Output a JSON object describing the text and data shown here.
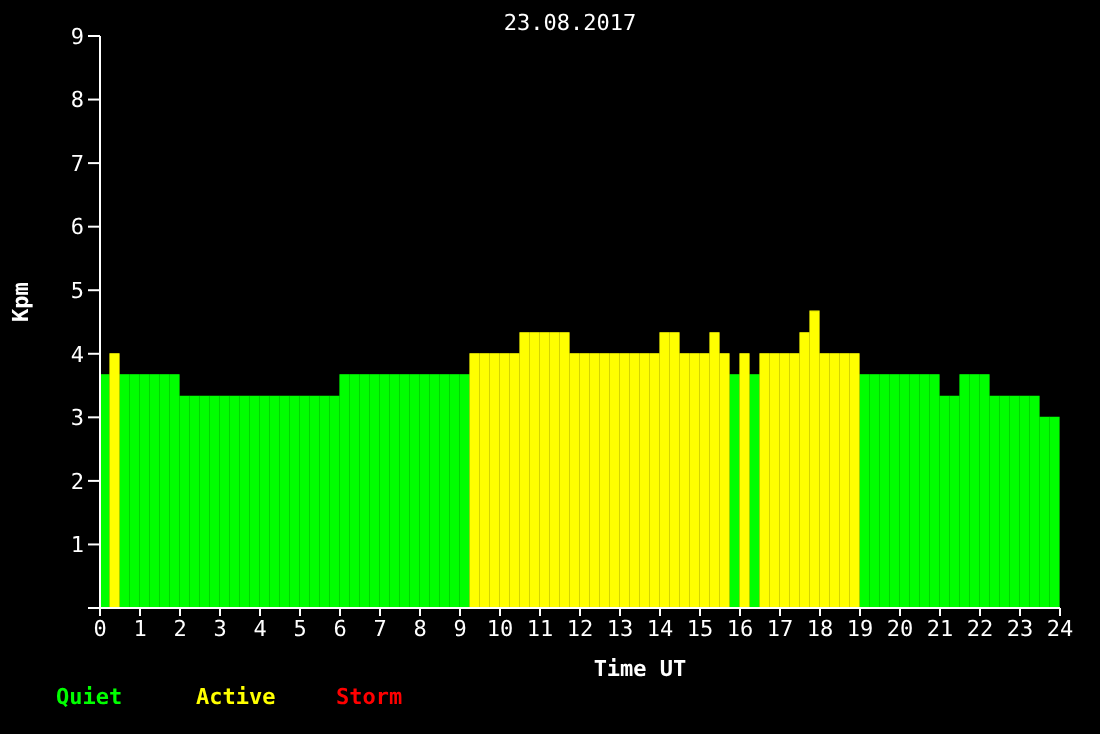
{
  "chart_data": {
    "type": "bar",
    "title": "23.08.2017",
    "xlabel": "Time UT",
    "ylabel": "Kpm",
    "x": [
      0.125,
      0.375,
      0.625,
      0.875,
      1.125,
      1.375,
      1.625,
      1.875,
      2.125,
      2.375,
      2.625,
      2.875,
      3.125,
      3.375,
      3.625,
      3.875,
      4.125,
      4.375,
      4.625,
      4.875,
      5.125,
      5.375,
      5.625,
      5.875,
      6.125,
      6.375,
      6.625,
      6.875,
      7.125,
      7.375,
      7.625,
      7.875,
      8.125,
      8.375,
      8.625,
      8.875,
      9.125,
      9.375,
      9.625,
      9.875,
      10.125,
      10.375,
      10.625,
      10.875,
      11.125,
      11.375,
      11.625,
      11.875,
      12.125,
      12.375,
      12.625,
      12.875,
      13.125,
      13.375,
      13.625,
      13.875,
      14.125,
      14.375,
      14.625,
      14.875,
      15.125,
      15.375,
      15.625,
      15.875,
      16.125,
      16.375,
      16.625,
      16.875,
      17.125,
      17.375,
      17.625,
      17.875,
      18.125,
      18.375,
      18.625,
      18.875,
      19.125,
      19.375,
      19.625,
      19.875,
      20.125,
      20.375,
      20.625,
      20.875,
      21.125,
      21.375,
      21.625,
      21.875,
      22.125,
      22.375,
      22.625,
      22.875,
      23.125,
      23.375,
      23.625,
      23.875
    ],
    "series": [
      {
        "name": "Quiet",
        "color": "#00ff00",
        "values": [
          3.67,
          null,
          3.67,
          3.67,
          3.67,
          3.67,
          3.67,
          3.67,
          3.33,
          3.33,
          3.33,
          3.33,
          3.33,
          3.33,
          3.33,
          3.33,
          3.33,
          3.33,
          3.33,
          3.33,
          3.33,
          3.33,
          3.33,
          3.33,
          3.67,
          3.67,
          3.67,
          3.67,
          3.67,
          3.67,
          3.67,
          3.67,
          3.67,
          3.67,
          3.67,
          3.67,
          3.67,
          null,
          null,
          null,
          null,
          null,
          null,
          null,
          null,
          null,
          null,
          null,
          null,
          null,
          null,
          null,
          null,
          null,
          null,
          null,
          null,
          null,
          null,
          null,
          null,
          null,
          null,
          3.67,
          null,
          3.67,
          null,
          null,
          null,
          null,
          null,
          null,
          null,
          null,
          null,
          null,
          3.67,
          3.67,
          3.67,
          3.67,
          3.67,
          3.67,
          3.67,
          3.67,
          3.33,
          3.33,
          3.67,
          3.67,
          3.67,
          3.33,
          3.33,
          3.33,
          3.33,
          3.33,
          3.0,
          3.0
        ]
      },
      {
        "name": "Active",
        "color": "#ffff00",
        "values": [
          null,
          4,
          null,
          null,
          null,
          null,
          null,
          null,
          null,
          null,
          null,
          null,
          null,
          null,
          null,
          null,
          null,
          null,
          null,
          null,
          null,
          null,
          null,
          null,
          null,
          null,
          null,
          null,
          null,
          null,
          null,
          null,
          null,
          null,
          null,
          null,
          null,
          4,
          4,
          4,
          4,
          4,
          4.33,
          4.33,
          4.33,
          4.33,
          4.33,
          4,
          4,
          4,
          4,
          4,
          4,
          4,
          4,
          4,
          4.33,
          4.33,
          4,
          4,
          4,
          4.33,
          4,
          null,
          4,
          null,
          4,
          4,
          4,
          4,
          4.33,
          4.67,
          4,
          4,
          4,
          4,
          null,
          null,
          null,
          null,
          null,
          null,
          null,
          null,
          null,
          null,
          null,
          null,
          null,
          null,
          null,
          null,
          null,
          null,
          null,
          null
        ]
      },
      {
        "name": "Storm",
        "color": "#ff0000",
        "values": [
          null,
          null,
          null,
          null,
          null,
          null,
          null,
          null,
          null,
          null,
          null,
          null,
          null,
          null,
          null,
          null,
          null,
          null,
          null,
          null,
          null,
          null,
          null,
          null,
          null,
          null,
          null,
          null,
          null,
          null,
          null,
          null,
          null,
          null,
          null,
          null,
          null,
          null,
          null,
          null,
          null,
          null,
          null,
          null,
          null,
          null,
          null,
          null,
          null,
          null,
          null,
          null,
          null,
          null,
          null,
          null,
          null,
          null,
          null,
          null,
          null,
          null,
          null,
          null,
          null,
          null,
          null,
          null,
          null,
          null,
          null,
          null,
          null,
          null,
          null,
          null,
          null,
          null,
          null,
          null,
          null,
          null,
          null,
          null,
          null,
          null,
          null,
          null,
          null,
          null,
          null,
          null,
          null,
          null,
          null,
          null
        ]
      }
    ],
    "xlim": [
      0,
      24
    ],
    "xticks": [
      0,
      1,
      2,
      3,
      4,
      5,
      6,
      7,
      8,
      9,
      10,
      11,
      12,
      13,
      14,
      15,
      16,
      17,
      18,
      19,
      20,
      21,
      22,
      23,
      24
    ],
    "ylim": [
      0,
      9
    ],
    "yticks": [
      {
        "value": 0,
        "label": null
      },
      1,
      2,
      3,
      4,
      5,
      6,
      7,
      8,
      9
    ],
    "stacked": true,
    "legend": "bottom left"
  }
}
